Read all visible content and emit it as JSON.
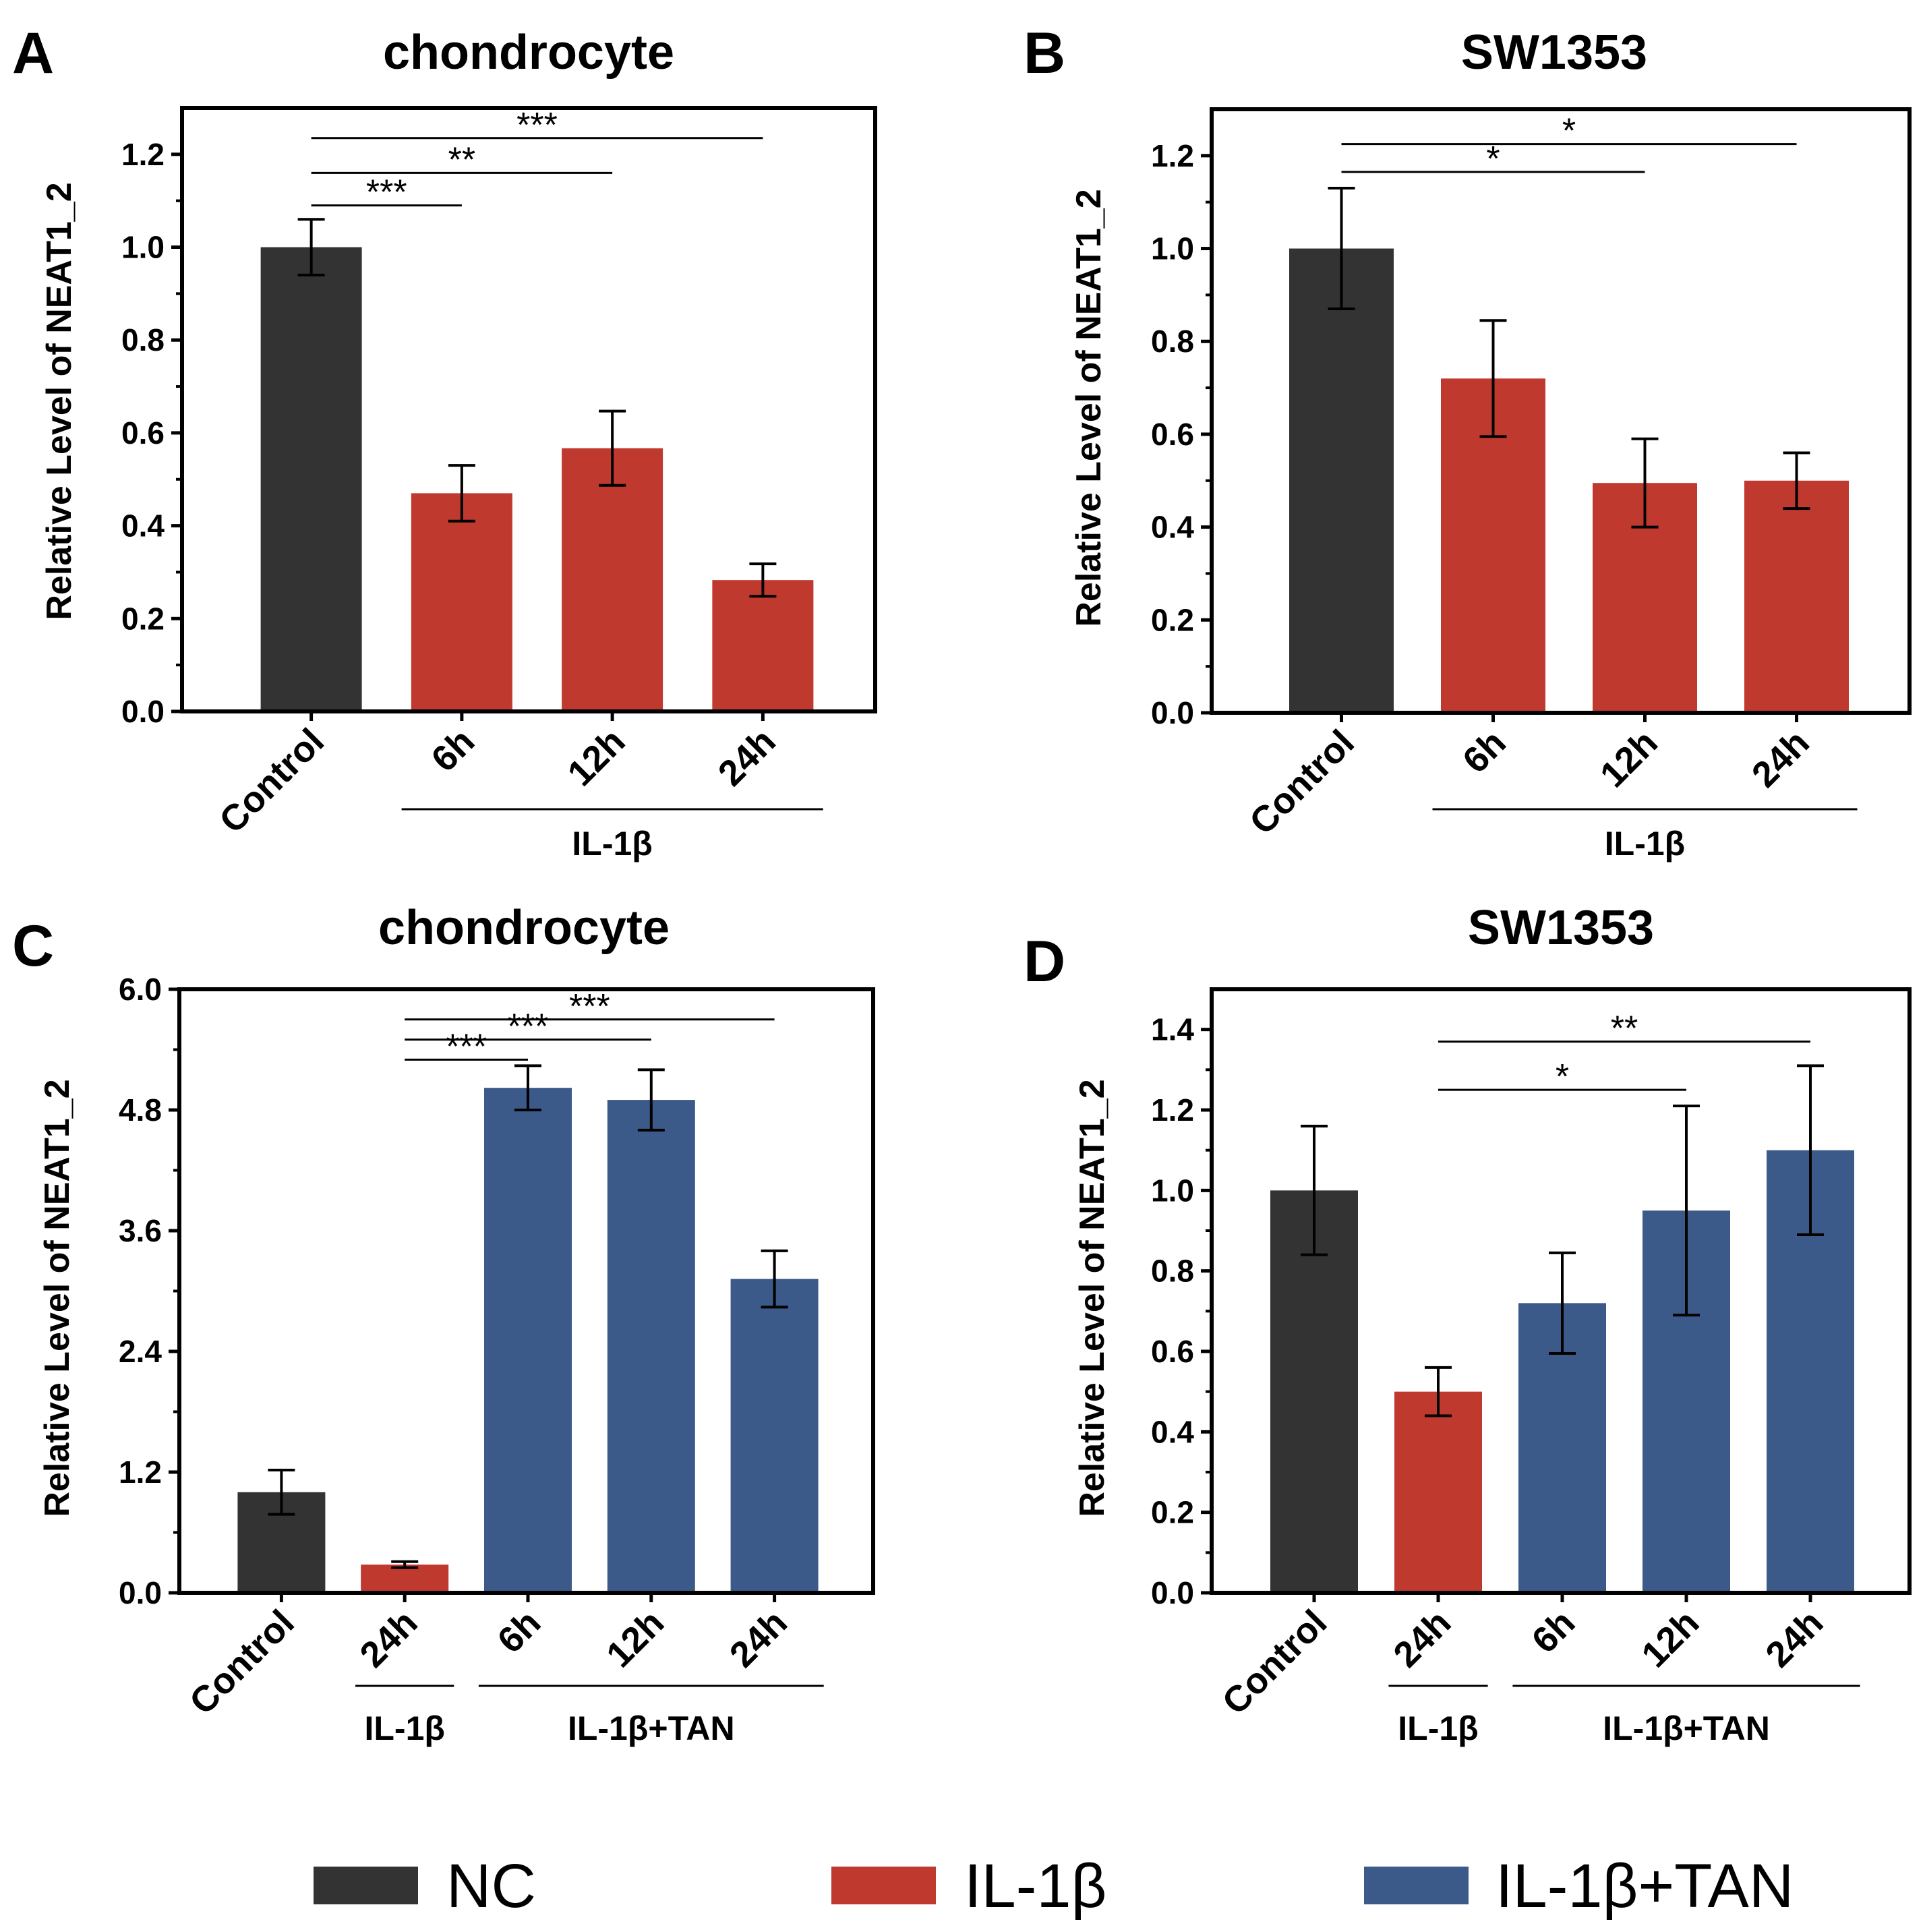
{
  "colors": {
    "NC": "#333333",
    "IL-1β": "#c0392f",
    "IL-1β+TAN": "#3b5a8a"
  },
  "legend": [
    {
      "label": "NC",
      "color": "#333333"
    },
    {
      "label": "IL-1β",
      "color": "#c0392f"
    },
    {
      "label": "IL-1β+TAN",
      "color": "#3b5a8a"
    }
  ],
  "chart_data": [
    {
      "panel": "A",
      "type": "bar",
      "title": "chondrocyte",
      "ylabel": "Relative Level of NEAT1_2",
      "ylim": [
        0,
        1.3
      ],
      "yticks": [
        0.0,
        0.2,
        0.4,
        0.6,
        0.8,
        1.0,
        1.2
      ],
      "tick_labels": [
        "0.0",
        "0.2",
        "0.4",
        "0.6",
        "0.8",
        "1.0",
        "1.2"
      ],
      "categories": [
        "Control",
        "6h",
        "12h",
        "24h"
      ],
      "values": [
        1.0,
        0.47,
        0.567,
        0.283
      ],
      "errors": [
        0.06,
        0.06,
        0.08,
        0.035
      ],
      "bar_groups": [
        "NC",
        "IL-1β",
        "IL-1β",
        "IL-1β"
      ],
      "groups": [
        {
          "label": "IL-1β",
          "from": 1,
          "to": 3
        }
      ],
      "significance": [
        {
          "from": 0,
          "to": 1,
          "label": "***",
          "y": 1.09
        },
        {
          "from": 0,
          "to": 2,
          "label": "**",
          "y": 1.16
        },
        {
          "from": 0,
          "to": 3,
          "label": "***",
          "y": 1.235
        }
      ]
    },
    {
      "panel": "B",
      "type": "bar",
      "title": "SW1353",
      "ylabel": "Relative Level of NEAT1_2",
      "ylim": [
        0,
        1.3
      ],
      "yticks": [
        0.0,
        0.2,
        0.4,
        0.6,
        0.8,
        1.0,
        1.2
      ],
      "tick_labels": [
        "0.0",
        "0.2",
        "0.4",
        "0.6",
        "0.8",
        "1.0",
        "1.2"
      ],
      "categories": [
        "Control",
        "6h",
        "12h",
        "24h"
      ],
      "values": [
        1.0,
        0.72,
        0.495,
        0.5
      ],
      "errors": [
        0.13,
        0.125,
        0.095,
        0.06
      ],
      "bar_groups": [
        "NC",
        "IL-1β",
        "IL-1β",
        "IL-1β"
      ],
      "groups": [
        {
          "label": "IL-1β",
          "from": 1,
          "to": 3
        }
      ],
      "significance": [
        {
          "from": 0,
          "to": 2,
          "label": "*",
          "y": 1.165
        },
        {
          "from": 0,
          "to": 3,
          "label": "*",
          "y": 1.225
        }
      ]
    },
    {
      "panel": "C",
      "type": "bar",
      "title": "chondrocyte",
      "ylabel": "Relative Level of NEAT1_2",
      "ylim": [
        0,
        6.0
      ],
      "yticks": [
        0.0,
        1.2,
        2.4,
        3.6,
        4.8,
        6.0
      ],
      "tick_labels": [
        "0.0",
        "1.2",
        "2.4",
        "3.6",
        "4.8",
        "6.0"
      ],
      "categories": [
        "Control",
        "24h",
        "6h",
        "12h",
        "24h"
      ],
      "values": [
        1.0,
        0.28,
        5.02,
        4.9,
        3.12
      ],
      "errors": [
        0.22,
        0.03,
        0.22,
        0.3,
        0.28
      ],
      "bar_groups": [
        "NC",
        "IL-1β",
        "IL-1β+TAN",
        "IL-1β+TAN",
        "IL-1β+TAN"
      ],
      "groups": [
        {
          "label": "IL-1β",
          "from": 1,
          "to": 1
        },
        {
          "label": "IL-1β+TAN",
          "from": 2,
          "to": 4
        }
      ],
      "significance": [
        {
          "from": 1,
          "to": 2,
          "label": "***",
          "y": 5.3
        },
        {
          "from": 1,
          "to": 3,
          "label": "***",
          "y": 5.5
        },
        {
          "from": 1,
          "to": 4,
          "label": "***",
          "y": 5.7
        }
      ]
    },
    {
      "panel": "D",
      "type": "bar",
      "title": "SW1353",
      "ylabel": "Relative Level of NEAT1_2",
      "ylim": [
        0,
        1.5
      ],
      "yticks": [
        0.0,
        0.2,
        0.4,
        0.6,
        0.8,
        1.0,
        1.2,
        1.4
      ],
      "tick_labels": [
        "0.0",
        "0.2",
        "0.4",
        "0.6",
        "0.8",
        "1.0",
        "1.2",
        "1.4"
      ],
      "categories": [
        "Control",
        "24h",
        "6h",
        "12h",
        "24h"
      ],
      "values": [
        1.0,
        0.5,
        0.72,
        0.95,
        1.1
      ],
      "errors": [
        0.16,
        0.06,
        0.125,
        0.26,
        0.21
      ],
      "bar_groups": [
        "NC",
        "IL-1β",
        "IL-1β+TAN",
        "IL-1β+TAN",
        "IL-1β+TAN"
      ],
      "groups": [
        {
          "label": "IL-1β",
          "from": 1,
          "to": 1
        },
        {
          "label": "IL-1β+TAN",
          "from": 2,
          "to": 4
        }
      ],
      "significance": [
        {
          "from": 1,
          "to": 3,
          "label": "*",
          "y": 1.25
        },
        {
          "from": 1,
          "to": 4,
          "label": "**",
          "y": 1.37
        }
      ]
    }
  ]
}
